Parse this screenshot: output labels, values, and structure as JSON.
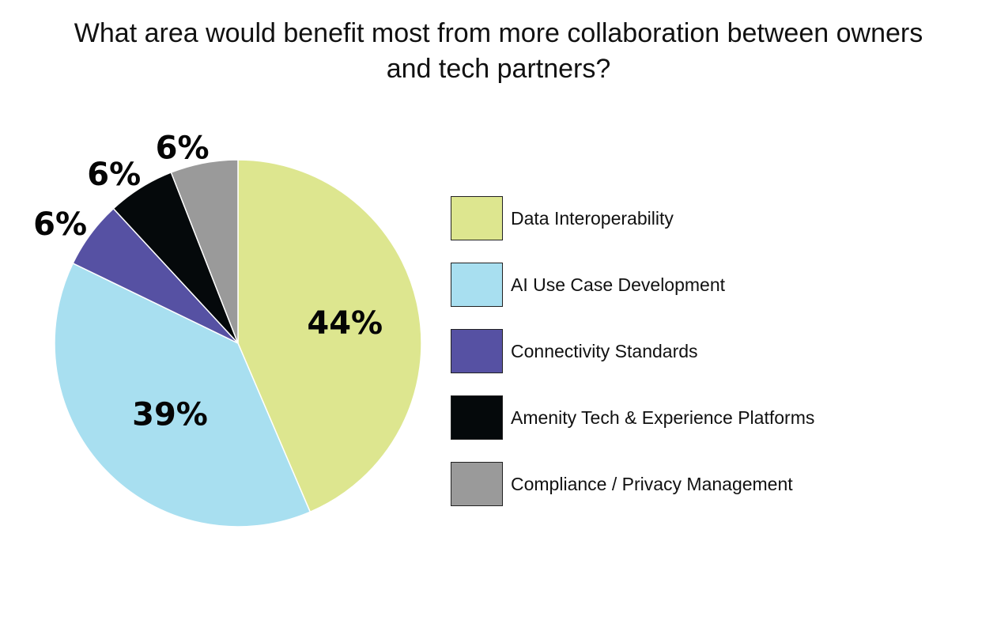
{
  "chart_data": {
    "type": "pie",
    "title": [
      "What area would benefit most from more collaboration between owners",
      "and tech partners?"
    ],
    "slices": [
      {
        "label": "Data Interoperability",
        "value": 44,
        "display": "44%",
        "color": "#dde68f"
      },
      {
        "label": "AI Use Case Development",
        "value": 39,
        "display": "39%",
        "color": "#a8dff0"
      },
      {
        "label": "Connectivity Standards",
        "value": 6,
        "display": "6%",
        "color": "#5651a3"
      },
      {
        "label": "Amenity Tech & Experience Platforms",
        "value": 6,
        "display": "6%",
        "color": "#05090b"
      },
      {
        "label": "Compliance / Privacy Management",
        "value": 6,
        "display": "6%",
        "color": "#9a9a9a"
      }
    ],
    "direction": "clockwise from top",
    "legend_position": "right",
    "data_labels": "inside for large slices, outside for small slices"
  }
}
